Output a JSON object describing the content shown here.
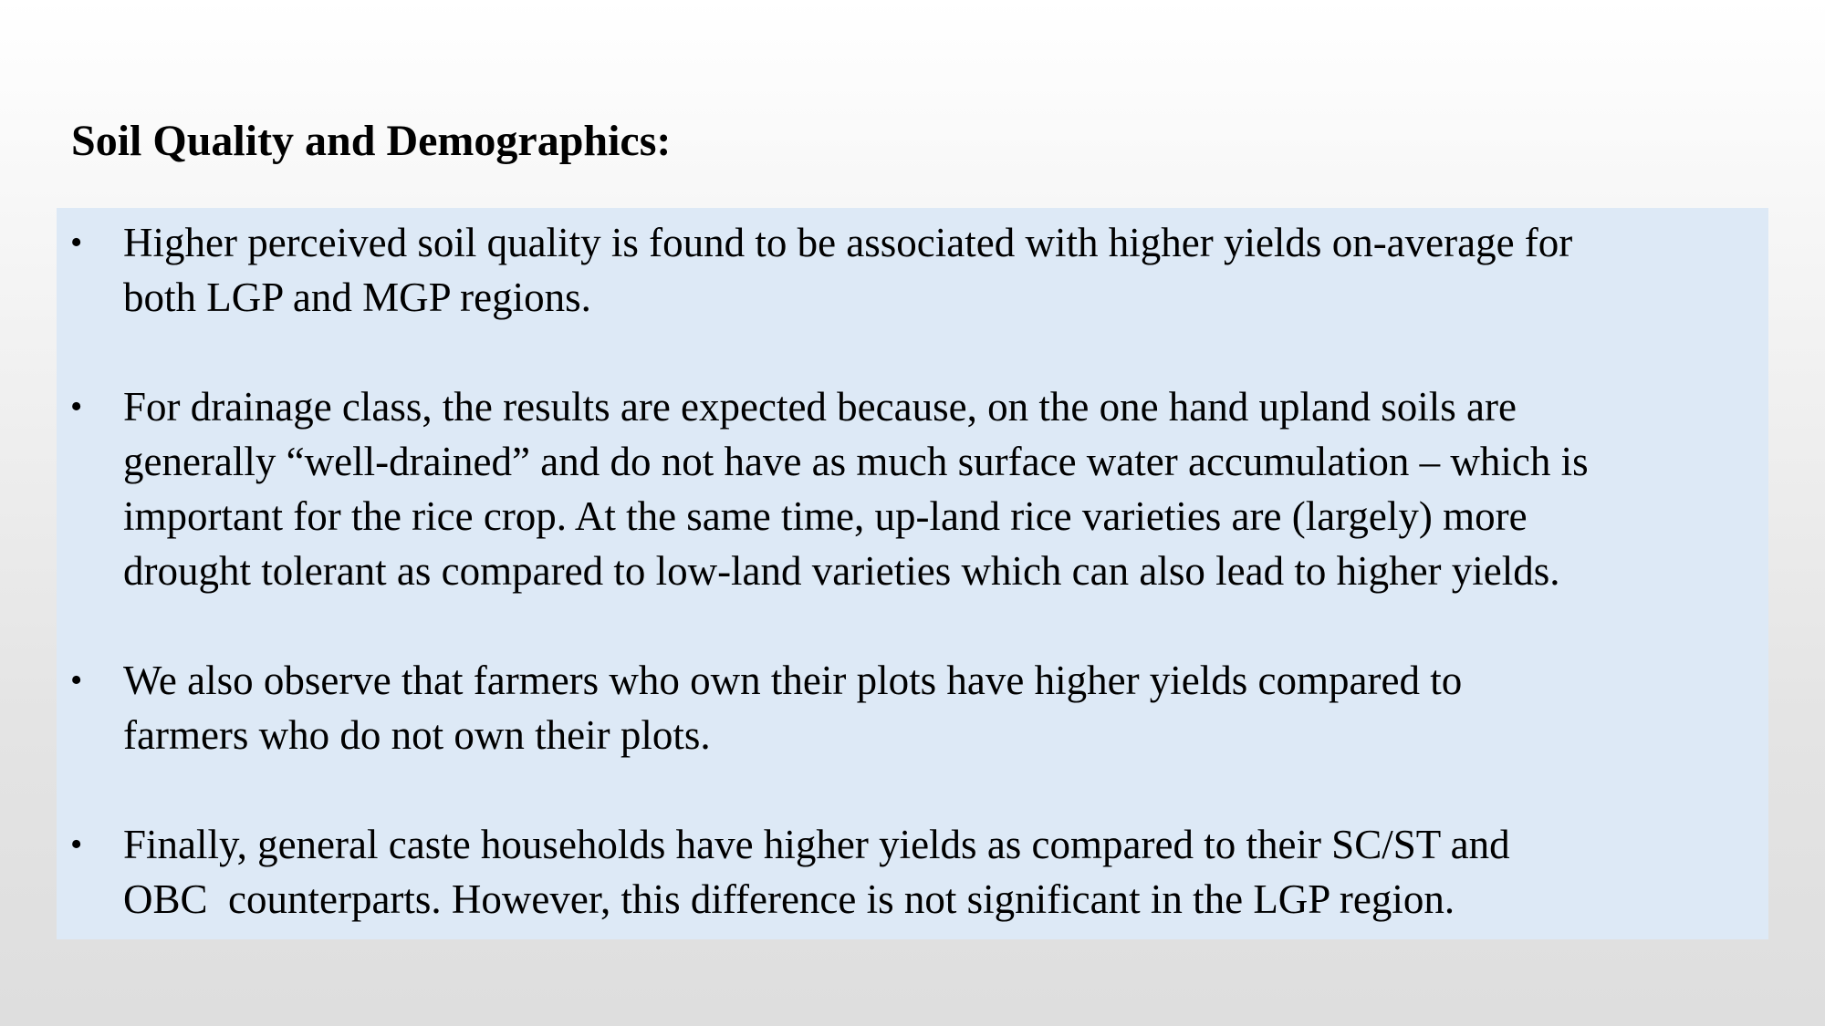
{
  "slide": {
    "title": "Soil Quality and Demographics:",
    "bullet_symbol": "•",
    "background_color": "#dde9f6",
    "bullets": [
      {
        "lines": [
          "Higher perceived soil quality is found to be associated with higher yields on-average for",
          "both LGP and MGP regions."
        ]
      },
      {
        "lines": [
          "For drainage class, the results are expected because, on the one hand upland soils are",
          "generally “well-drained” and do not have as much surface water accumulation – which is",
          "important for the rice crop. At the same time, up-land rice varieties are (largely) more",
          "drought tolerant as compared to low-land varieties which can also lead to higher yields."
        ]
      },
      {
        "lines": [
          "We also observe that farmers who own their plots have higher yields compared to",
          "farmers who do not own their plots."
        ]
      },
      {
        "lines": [
          "Finally, general caste households have higher yields as compared to their SC/ST and",
          "OBC  counterparts. However, this difference is not significant in the LGP region."
        ]
      }
    ]
  }
}
